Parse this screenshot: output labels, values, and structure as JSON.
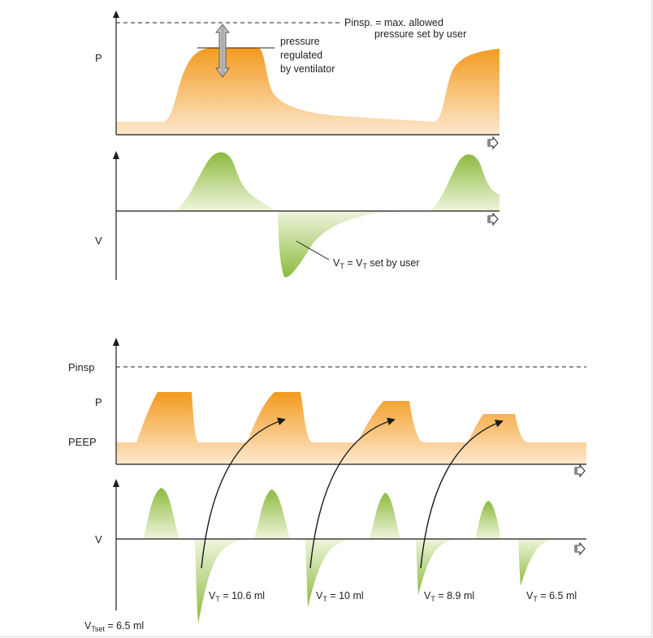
{
  "top": {
    "pinsp_line1": "Pinsp. = max. allowed",
    "pinsp_line2": "pressure set by user",
    "pressure_note": [
      "pressure",
      "regulated",
      "by ventilator"
    ],
    "p_label": "P",
    "v_label": "V",
    "vt_main": "V",
    "vt_sub": "T",
    "vt_mid": " = V",
    "vt_sub2": "T",
    "vt_tail": " set by user"
  },
  "bottom": {
    "pinsp_label": "Pinsp",
    "p_label": "P",
    "peep_label": "PEEP",
    "v_label": "V",
    "tidal_volumes": [
      {
        "v": "V",
        "sub": "T",
        "rest": " = 10.6 ml"
      },
      {
        "v": "V",
        "sub": "T",
        "rest": " = 10 ml"
      },
      {
        "v": "V",
        "sub": "T",
        "rest": " = 8.9 ml"
      },
      {
        "v": "V",
        "sub": "T",
        "rest": " = 6.5 ml"
      }
    ],
    "vtset": {
      "v": "V",
      "sub": "Tset",
      "rest": " = 6.5 ml"
    }
  },
  "colors": {
    "pressure_top": "#f39a1e",
    "pressure_bottom": "#fde8cf",
    "flow_dark": "#8dba3f",
    "flow_light": "#eef5dc",
    "arrow_grey": "#b5b5b5"
  }
}
